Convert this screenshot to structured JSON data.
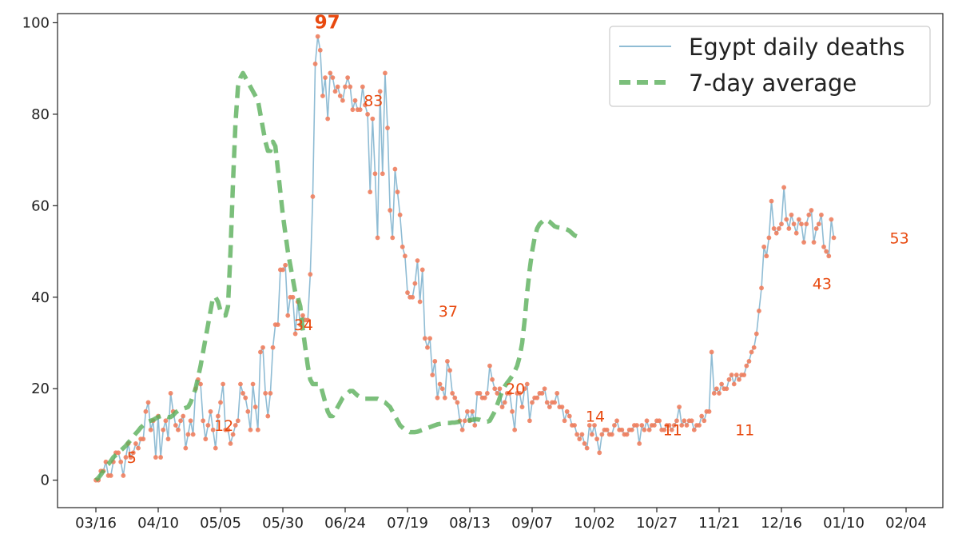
{
  "chart_data": {
    "type": "line",
    "title": "",
    "xlabel": "",
    "ylabel": "",
    "ylim": [
      -6,
      102
    ],
    "x_start_date": "2020-03-16",
    "x_end_date": "2021-02-04",
    "x_tick_labels": [
      "03/16",
      "04/10",
      "05/05",
      "05/30",
      "06/24",
      "07/19",
      "08/13",
      "09/07",
      "10/02",
      "10/27",
      "11/21",
      "12/16",
      "01/10",
      "02/04"
    ],
    "y_ticks": [
      0,
      20,
      40,
      60,
      80,
      100
    ],
    "y_tick_labels": [
      "0",
      "20",
      "40",
      "60",
      "80",
      "100"
    ],
    "grid": false,
    "legend_position": "top-right",
    "colors": {
      "daily": "#8fbcd4",
      "points": "#f07f5f",
      "average": "#5aaf5a",
      "labels": "#e8490f"
    },
    "series": [
      {
        "name": "Egypt daily deaths",
        "style": "thin-line-with-dots",
        "start_date": "2020-03-16",
        "values": [
          0,
          0,
          2,
          2,
          4,
          1,
          1,
          4,
          6,
          6,
          4,
          1,
          5,
          8,
          5,
          6,
          8,
          7,
          9,
          9,
          15,
          17,
          11,
          13,
          5,
          14,
          5,
          11,
          13,
          9,
          19,
          15,
          12,
          11,
          13,
          14,
          7,
          10,
          13,
          10,
          20,
          22,
          21,
          13,
          9,
          12,
          15,
          11,
          7,
          14,
          17,
          21,
          11,
          11,
          8,
          10,
          12,
          13,
          21,
          19,
          18,
          15,
          11,
          21,
          16,
          11,
          28,
          29,
          19,
          14,
          19,
          29,
          34,
          34,
          46,
          46,
          47,
          36,
          40,
          40,
          32,
          39,
          34,
          36,
          35,
          35,
          45,
          62,
          91,
          97,
          94,
          84,
          88,
          79,
          89,
          88,
          85,
          86,
          84,
          83,
          86,
          88,
          86,
          81,
          83,
          81,
          81,
          86,
          82,
          80,
          63,
          79,
          67,
          53,
          85,
          67,
          89,
          77,
          59,
          53,
          68,
          63,
          58,
          51,
          49,
          41,
          40,
          40,
          43,
          48,
          39,
          46,
          31,
          29,
          31,
          23,
          26,
          18,
          21,
          20,
          18,
          26,
          24,
          19,
          18,
          17,
          13,
          11,
          13,
          15,
          13,
          15,
          12,
          19,
          19,
          18,
          18,
          19,
          25,
          22,
          20,
          19,
          20,
          16,
          17,
          19,
          19,
          15,
          11,
          19,
          19,
          16,
          20,
          21,
          13,
          17,
          18,
          18,
          19,
          19,
          20,
          17,
          16,
          17,
          17,
          19,
          16,
          16,
          13,
          15,
          14,
          12,
          12,
          10,
          9,
          10,
          8,
          7,
          12,
          10,
          12,
          9,
          6,
          10,
          11,
          11,
          10,
          10,
          12,
          13,
          11,
          11,
          10,
          10,
          11,
          11,
          12,
          12,
          8,
          12,
          11,
          13,
          11,
          12,
          12,
          13,
          13,
          11,
          11,
          12,
          12,
          11,
          12,
          13,
          16,
          12,
          13,
          12,
          13,
          13,
          11,
          12,
          12,
          14,
          13,
          15,
          15,
          28,
          19,
          20,
          19,
          21,
          20,
          20,
          22,
          23,
          21,
          23,
          22,
          23,
          23,
          25,
          26,
          28,
          29,
          32,
          37,
          42,
          51,
          49,
          53,
          61,
          55,
          54,
          55,
          56,
          64,
          57,
          55,
          58,
          56,
          54,
          57,
          56,
          52,
          56,
          58,
          59,
          52,
          55,
          56,
          58,
          51,
          50,
          49,
          57,
          53
        ]
      },
      {
        "name": "7-day average",
        "style": "thick-dashed-line",
        "start_date": "2020-03-16",
        "values": [
          0,
          0.5,
          1.2,
          2,
          3,
          3.5,
          4.2,
          5,
          5.5,
          6,
          6.5,
          7,
          7.5,
          8.2,
          8.8,
          9.5,
          10.2,
          10.8,
          11.5,
          12,
          12.5,
          12.8,
          13,
          13.2,
          13.5,
          13.8,
          14,
          14.2,
          14,
          13.8,
          13.8,
          14.2,
          14.8,
          15.2,
          15.5,
          15.6,
          15.8,
          16,
          17,
          18.5,
          20,
          22.5,
          25,
          28,
          31,
          34,
          37,
          40,
          40,
          39,
          37,
          36,
          36,
          38,
          50,
          65,
          78,
          86,
          88,
          89,
          88,
          87,
          86,
          85,
          84,
          83,
          80,
          77,
          74,
          72,
          72,
          74,
          73,
          68,
          63,
          58,
          54,
          50,
          47,
          44,
          41,
          40,
          38,
          33,
          29,
          25,
          22,
          21,
          21,
          21,
          21,
          19,
          17,
          15,
          14,
          14,
          15,
          16,
          17,
          18,
          18.5,
          19,
          19.5,
          19.5,
          19,
          18.5,
          18.2,
          18,
          17.8,
          17.8,
          17.8,
          17.8,
          17.8,
          17.8,
          17.5,
          17.2,
          17,
          16.5,
          16,
          15,
          14,
          13,
          12,
          11.5,
          11,
          10.8,
          10.5,
          10.5,
          10.5,
          10.6,
          10.8,
          11,
          11.2,
          11.4,
          11.6,
          11.8,
          12,
          12.2,
          12.3,
          12.4,
          12.5,
          12.5,
          12.5,
          12.6,
          12.6,
          12.7,
          12.8,
          12.8,
          12.9,
          13,
          13.1,
          13.2,
          13.3,
          13.3,
          13.2,
          13,
          12.8,
          12.8,
          13,
          14,
          15,
          16.5,
          18,
          19.5,
          20.5,
          21.3,
          22,
          22.8,
          23.8,
          25,
          27,
          30,
          35,
          41,
          46,
          50,
          53,
          55,
          56,
          56.5,
          57,
          56.8,
          56.5,
          56,
          55.5,
          55.3,
          55.2,
          55,
          55,
          54.8,
          54.5,
          54,
          53.5,
          53.3,
          53.2
        ]
      }
    ],
    "annotations": [
      {
        "date": "2020-03-31",
        "value": 5,
        "label": "5"
      },
      {
        "date": "2020-05-05",
        "value": 12,
        "label": "12"
      },
      {
        "date": "2020-06-06",
        "value": 34,
        "label": "34"
      },
      {
        "date": "2020-06-13",
        "value": 97,
        "label": "97",
        "bold": true
      },
      {
        "date": "2020-07-04",
        "value": 83,
        "label": "83"
      },
      {
        "date": "2020-08-03",
        "value": 37,
        "label": "37"
      },
      {
        "date": "2020-08-30",
        "value": 20,
        "label": "20"
      },
      {
        "date": "2020-10-01",
        "value": 14,
        "label": "14"
      },
      {
        "date": "2020-11-01",
        "value": 11,
        "label": "11"
      },
      {
        "date": "2020-11-30",
        "value": 11,
        "label": "11"
      },
      {
        "date": "2020-12-31",
        "value": 43,
        "label": "43"
      },
      {
        "date": "2021-01-31",
        "value": 53,
        "label": "53"
      }
    ]
  }
}
